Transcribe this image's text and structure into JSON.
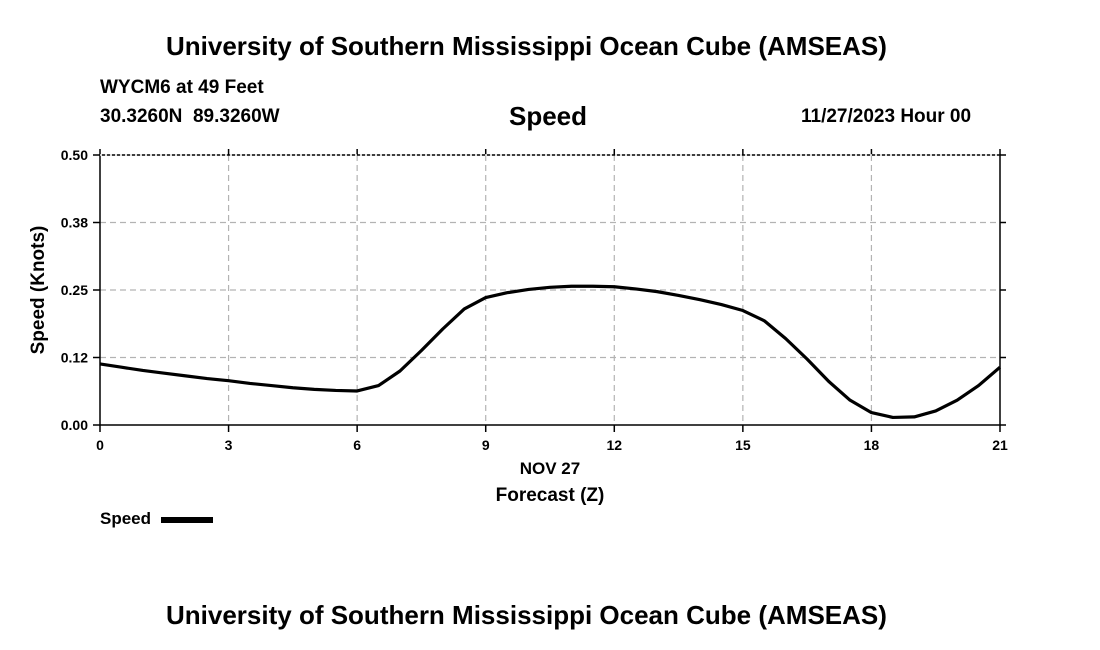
{
  "header": {
    "title": "University of Southern Mississippi Ocean Cube (AMSEAS)",
    "station": "WYCM6 at 49 Feet",
    "coords": "30.3260N  89.3260W",
    "variable": "Speed",
    "datetime": "11/27/2023 Hour 00"
  },
  "footer": {
    "title": "University of Southern Mississippi Ocean Cube (AMSEAS)"
  },
  "chart_data": {
    "type": "line",
    "title": "Speed",
    "xlabel": "Forecast (Z)",
    "xsublabel": "NOV 27",
    "ylabel": "Speed (Knots)",
    "xlim": [
      0,
      21
    ],
    "ylim": [
      0,
      0.5
    ],
    "xticks": [
      0,
      3,
      6,
      9,
      12,
      15,
      18,
      21
    ],
    "xtick_labels": [
      "0",
      "3",
      "6",
      "9",
      "12",
      "15",
      "18",
      "21"
    ],
    "yticks": [
      0,
      0.125,
      0.25,
      0.375,
      0.5
    ],
    "ytick_labels": [
      "0.00",
      "0.12",
      "0.25",
      "0.38",
      "0.50"
    ],
    "grid": true,
    "legend": "bottom-left",
    "series": [
      {
        "name": "Speed",
        "color": "#000000",
        "x": [
          0,
          0.5,
          1,
          1.5,
          2,
          2.5,
          3,
          3.5,
          4,
          4.5,
          5,
          5.5,
          6,
          6.5,
          7,
          7.5,
          8,
          8.5,
          9,
          9.5,
          10,
          10.5,
          11,
          11.5,
          12,
          12.5,
          13,
          13.5,
          14,
          14.5,
          15,
          15.5,
          16,
          16.5,
          17,
          17.5,
          18,
          18.5,
          19,
          19.5,
          20,
          20.5,
          21
        ],
        "values": [
          0.113,
          0.107,
          0.101,
          0.096,
          0.091,
          0.086,
          0.082,
          0.077,
          0.073,
          0.069,
          0.066,
          0.064,
          0.063,
          0.073,
          0.1,
          0.138,
          0.178,
          0.215,
          0.236,
          0.245,
          0.251,
          0.255,
          0.257,
          0.257,
          0.256,
          0.252,
          0.247,
          0.24,
          0.232,
          0.223,
          0.212,
          0.193,
          0.16,
          0.122,
          0.081,
          0.046,
          0.023,
          0.014,
          0.015,
          0.026,
          0.046,
          0.073,
          0.107
        ]
      }
    ]
  }
}
